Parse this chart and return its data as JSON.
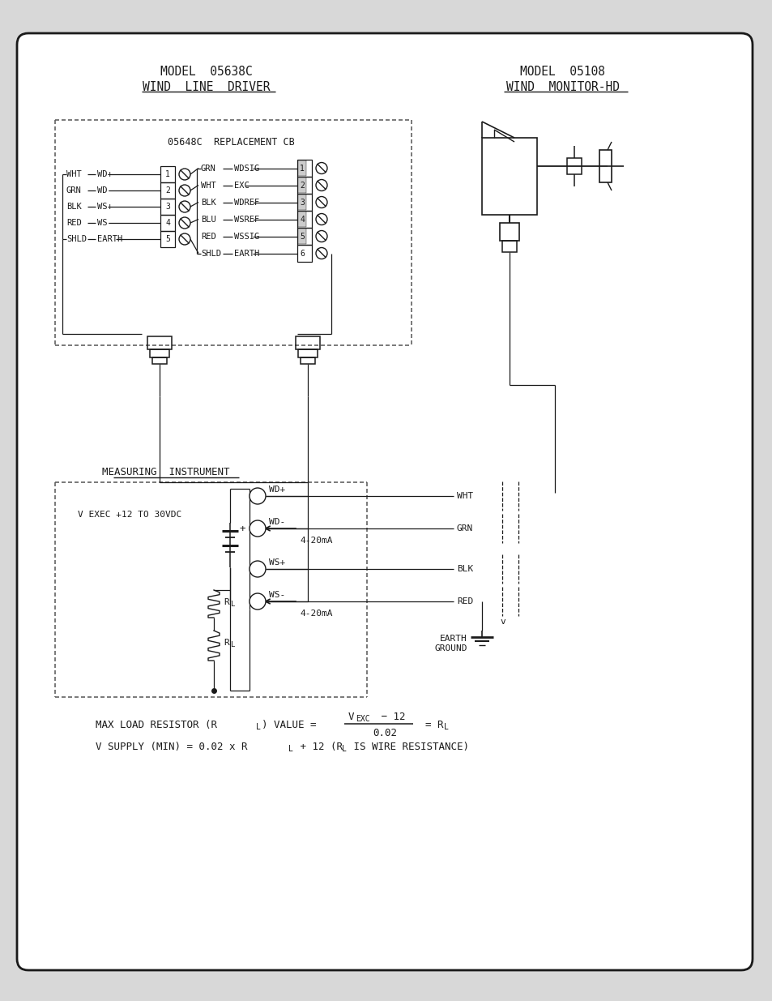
{
  "title_left_1": "MODEL  05638C",
  "title_left_2": "WIND  LINE  DRIVER",
  "title_right_1": "MODEL  05108",
  "title_right_2": "WIND  MONITOR-HD",
  "cb_label": "05648C  REPLACEMENT CB",
  "mi_label": "MEASURING  INSTRUMENT",
  "v_exec": "V EXEC +12 TO 30VDC",
  "left_wires": [
    [
      "WHT",
      "WD+"
    ],
    [
      "GRN",
      "WD-"
    ],
    [
      "BLK",
      "WS+"
    ],
    [
      "RED",
      "WS-"
    ],
    [
      "SHLD",
      "EARTH"
    ]
  ],
  "right_wires": [
    [
      "GRN",
      "WDSIG"
    ],
    [
      "WHT",
      "EXC"
    ],
    [
      "BLK",
      "WDREF"
    ],
    [
      "BLU",
      "WSREF"
    ],
    [
      "RED",
      "WSSIG"
    ],
    [
      "SHLD",
      "EARTH"
    ]
  ],
  "node_labels": [
    "WD+",
    "WD-",
    "WS+",
    "WS-"
  ],
  "output_wire_labels": [
    "WHT",
    "GRN",
    "BLK",
    "RED"
  ],
  "current_label": "4-20mA",
  "earth_line1": "EARTH",
  "earth_line2": "GROUND",
  "formula1": "MAX LOAD RESISTOR (R",
  "formula1b": ") VALUE =",
  "formula_num": "V",
  "formula_sub": "EXC",
  "formula_rest": " − 12",
  "formula_den": "0.02",
  "formula_eq": "= R",
  "formula2a": "V SUPPLY (MIN) = 0.02 x R",
  "formula2b": " + 12 (R",
  "formula2c": " IS WIRE RESISTANCE)"
}
